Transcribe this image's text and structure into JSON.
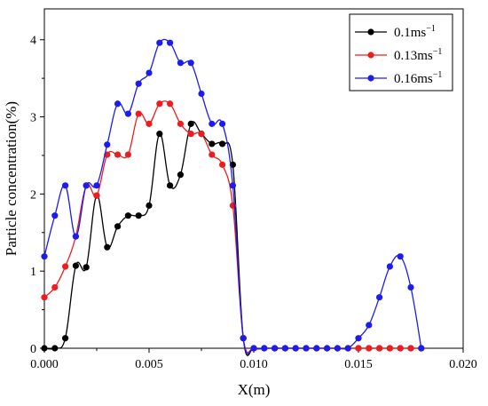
{
  "chart_data": {
    "type": "line",
    "xlabel": "X(m)",
    "ylabel": "Particle concentration(%)",
    "xlim": [
      0,
      0.02
    ],
    "ylim": [
      0,
      4.4
    ],
    "xticks": [
      0.0,
      0.005,
      0.01,
      0.015,
      0.02
    ],
    "xtick_labels": [
      "0.000",
      "0.005",
      "0.010",
      "0.015",
      "0.020"
    ],
    "yticks": [
      0,
      1,
      2,
      3,
      4
    ],
    "ytick_labels": [
      "0",
      "1",
      "2",
      "3",
      "4"
    ],
    "legend_position": "top-right",
    "grid": false,
    "series": [
      {
        "name": "0.1ms",
        "unit_superscript": "−1",
        "color": "#000000",
        "x": [
          0.0,
          0.0005,
          0.001,
          0.0015,
          0.002,
          0.0025,
          0.003,
          0.0035,
          0.004,
          0.0045,
          0.005,
          0.0055,
          0.006,
          0.0065,
          0.007,
          0.0075,
          0.008,
          0.0085,
          0.009,
          0.0095,
          0.01,
          0.0105,
          0.011,
          0.0115,
          0.012,
          0.0125,
          0.013,
          0.0135,
          0.014,
          0.0145,
          0.015,
          0.0155,
          0.016,
          0.0165,
          0.017,
          0.0175,
          0.018
        ],
        "y": [
          0.0,
          0.0,
          0.13,
          1.07,
          1.05,
          1.98,
          1.31,
          1.58,
          1.72,
          1.72,
          1.85,
          2.78,
          2.11,
          2.25,
          2.91,
          2.78,
          2.65,
          2.65,
          2.38,
          0.13,
          0.0,
          0.0,
          0.0,
          0.0,
          0.0,
          0.0,
          0.0,
          0.0,
          0.0,
          0.0,
          0.0,
          0.0,
          0.0,
          0.0,
          0.0,
          0.0,
          0.0
        ]
      },
      {
        "name": "0.13ms",
        "unit_superscript": "−1",
        "color": "#ee1c1c",
        "x": [
          0.0,
          0.0005,
          0.001,
          0.0015,
          0.002,
          0.0025,
          0.003,
          0.0035,
          0.004,
          0.0045,
          0.005,
          0.0055,
          0.006,
          0.0065,
          0.007,
          0.0075,
          0.008,
          0.0085,
          0.009,
          0.0095,
          0.01,
          0.0105,
          0.011,
          0.0115,
          0.012,
          0.0125,
          0.013,
          0.0135,
          0.014,
          0.0145,
          0.015,
          0.0155,
          0.016,
          0.0165,
          0.017,
          0.0175,
          0.018
        ],
        "y": [
          0.66,
          0.79,
          1.06,
          1.45,
          2.11,
          1.98,
          2.51,
          2.51,
          2.51,
          3.04,
          2.91,
          3.17,
          3.17,
          2.91,
          2.78,
          2.78,
          2.51,
          2.38,
          1.85,
          0.13,
          0.0,
          0.0,
          0.0,
          0.0,
          0.0,
          0.0,
          0.0,
          0.0,
          0.0,
          0.0,
          0.0,
          0.0,
          0.0,
          0.0,
          0.0,
          0.0,
          0.0
        ]
      },
      {
        "name": "0.16ms",
        "unit_superscript": "−1",
        "color": "#1c1cee",
        "x": [
          0.0,
          0.0005,
          0.001,
          0.0015,
          0.002,
          0.0025,
          0.003,
          0.0035,
          0.004,
          0.0045,
          0.005,
          0.0055,
          0.006,
          0.0065,
          0.007,
          0.0075,
          0.008,
          0.0085,
          0.009,
          0.0095,
          0.01,
          0.0105,
          0.011,
          0.0115,
          0.012,
          0.0125,
          0.013,
          0.0135,
          0.014,
          0.0145,
          0.015,
          0.0155,
          0.016,
          0.0165,
          0.017,
          0.0175,
          0.018
        ],
        "y": [
          1.19,
          1.72,
          2.11,
          1.45,
          2.11,
          2.11,
          2.64,
          3.17,
          3.04,
          3.43,
          3.57,
          3.96,
          3.96,
          3.7,
          3.7,
          3.3,
          2.91,
          2.91,
          2.11,
          0.13,
          0.0,
          0.0,
          0.0,
          0.0,
          0.0,
          0.0,
          0.0,
          0.0,
          0.0,
          0.0,
          0.13,
          0.3,
          0.66,
          1.06,
          1.19,
          0.79,
          0.0
        ]
      }
    ]
  }
}
